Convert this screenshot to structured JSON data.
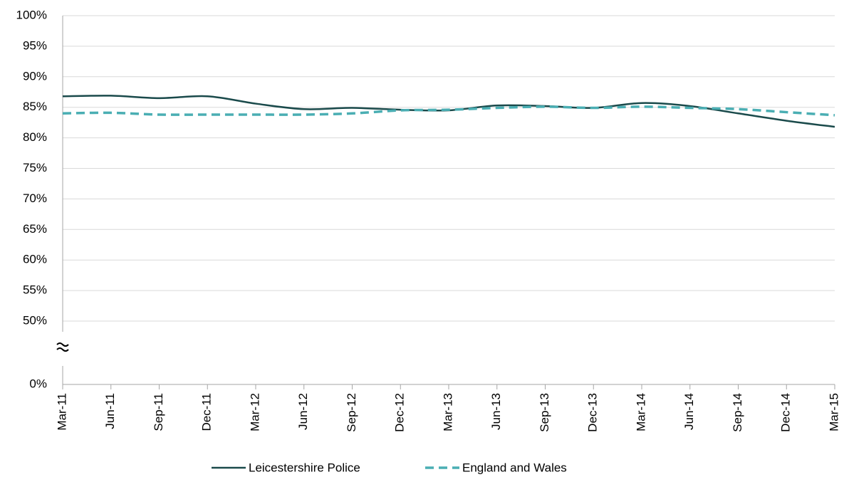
{
  "chart_data": {
    "type": "line",
    "categories": [
      "Mar-11",
      "Jun-11",
      "Sep-11",
      "Dec-11",
      "Mar-12",
      "Jun-12",
      "Sep-12",
      "Dec-12",
      "Mar-13",
      "Jun-13",
      "Sep-13",
      "Dec-13",
      "Mar-14",
      "Jun-14",
      "Sep-14",
      "Dec-14",
      "Mar-15"
    ],
    "series": [
      {
        "name": "Leicestershire Police",
        "color": "#1a4a4b",
        "dash": false,
        "values": [
          86.8,
          86.9,
          86.5,
          86.8,
          85.6,
          84.7,
          84.9,
          84.6,
          84.5,
          85.3,
          85.2,
          84.9,
          85.7,
          85.2,
          84.0,
          82.8,
          81.8
        ]
      },
      {
        "name": "England and Wales",
        "color": "#4aaeb3",
        "dash": true,
        "values": [
          84.0,
          84.1,
          83.8,
          83.8,
          83.8,
          83.8,
          84.0,
          84.5,
          84.6,
          84.9,
          85.1,
          84.9,
          85.1,
          84.9,
          84.7,
          84.2,
          83.7
        ]
      }
    ],
    "ylim": [
      0,
      100
    ],
    "yticks": [
      {
        "value": 0,
        "label": "0%"
      },
      {
        "value": 50,
        "label": "50%"
      },
      {
        "value": 55,
        "label": "55%"
      },
      {
        "value": 60,
        "label": "60%"
      },
      {
        "value": 65,
        "label": "65%"
      },
      {
        "value": 70,
        "label": "70%"
      },
      {
        "value": 75,
        "label": "75%"
      },
      {
        "value": 80,
        "label": "80%"
      },
      {
        "value": 85,
        "label": "85%"
      },
      {
        "value": 90,
        "label": "90%"
      },
      {
        "value": 95,
        "label": "95%"
      },
      {
        "value": 100,
        "label": "100%"
      }
    ],
    "grid": true
  }
}
